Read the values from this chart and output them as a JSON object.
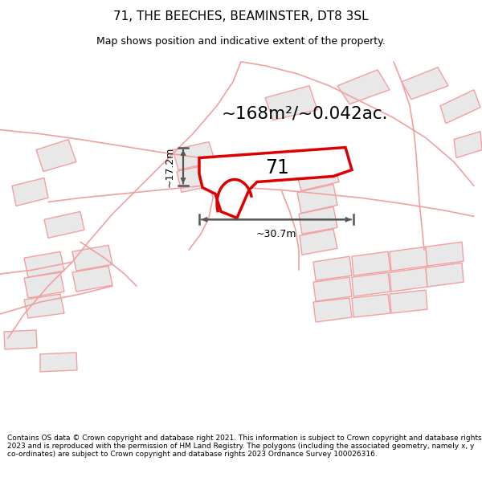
{
  "title": "71, THE BEECHES, BEAMINSTER, DT8 3SL",
  "subtitle": "Map shows position and indicative extent of the property.",
  "footer": "Contains OS data © Crown copyright and database right 2021. This information is subject to Crown copyright and database rights 2023 and is reproduced with the permission of HM Land Registry. The polygons (including the associated geometry, namely x, y co-ordinates) are subject to Crown copyright and database rights 2023 Ordnance Survey 100026316.",
  "area_text": "~168m²/~0.042ac.",
  "label": "71",
  "dim_width": "~30.7m",
  "dim_height": "~17.2m",
  "bg_color": "#ffffff",
  "map_bg": "#ffffff",
  "highlight_stroke": "#dd0000",
  "other_stroke": "#f0a0a0",
  "other_fill": "#e8e8e8",
  "road_color": "#f0a0a0",
  "dim_color": "#555555",
  "title_fontsize": 11,
  "subtitle_fontsize": 9,
  "footer_fontsize": 6.5
}
